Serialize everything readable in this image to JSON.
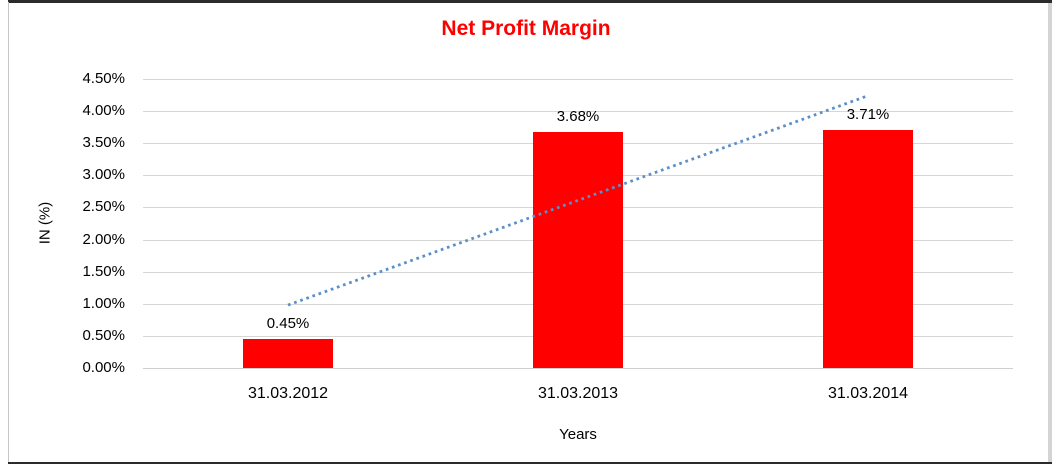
{
  "chart_data": {
    "type": "bar",
    "title": "Net Profit Margin",
    "title_color": "#ff0000",
    "xlabel": "Years",
    "ylabel": "IN (%)",
    "categories": [
      "31.03.2012",
      "31.03.2013",
      "31.03.2014"
    ],
    "values": [
      0.45,
      3.68,
      3.71
    ],
    "data_labels": [
      "0.45%",
      "3.68%",
      "3.71%"
    ],
    "bar_color": "#ff0000",
    "ylim": [
      0,
      4.5
    ],
    "ytick_step": 0.5,
    "ytick_labels": [
      "0.00%",
      "0.50%",
      "1.00%",
      "1.50%",
      "2.00%",
      "2.50%",
      "3.00%",
      "3.50%",
      "4.00%",
      "4.50%"
    ],
    "grid": true,
    "gridline_color": "#d6d6d6",
    "legend": "none",
    "trendline": {
      "type": "linear",
      "style": "dotted",
      "color": "#5b8fc9",
      "start_value": 0.98,
      "end_value": 4.24
    }
  }
}
